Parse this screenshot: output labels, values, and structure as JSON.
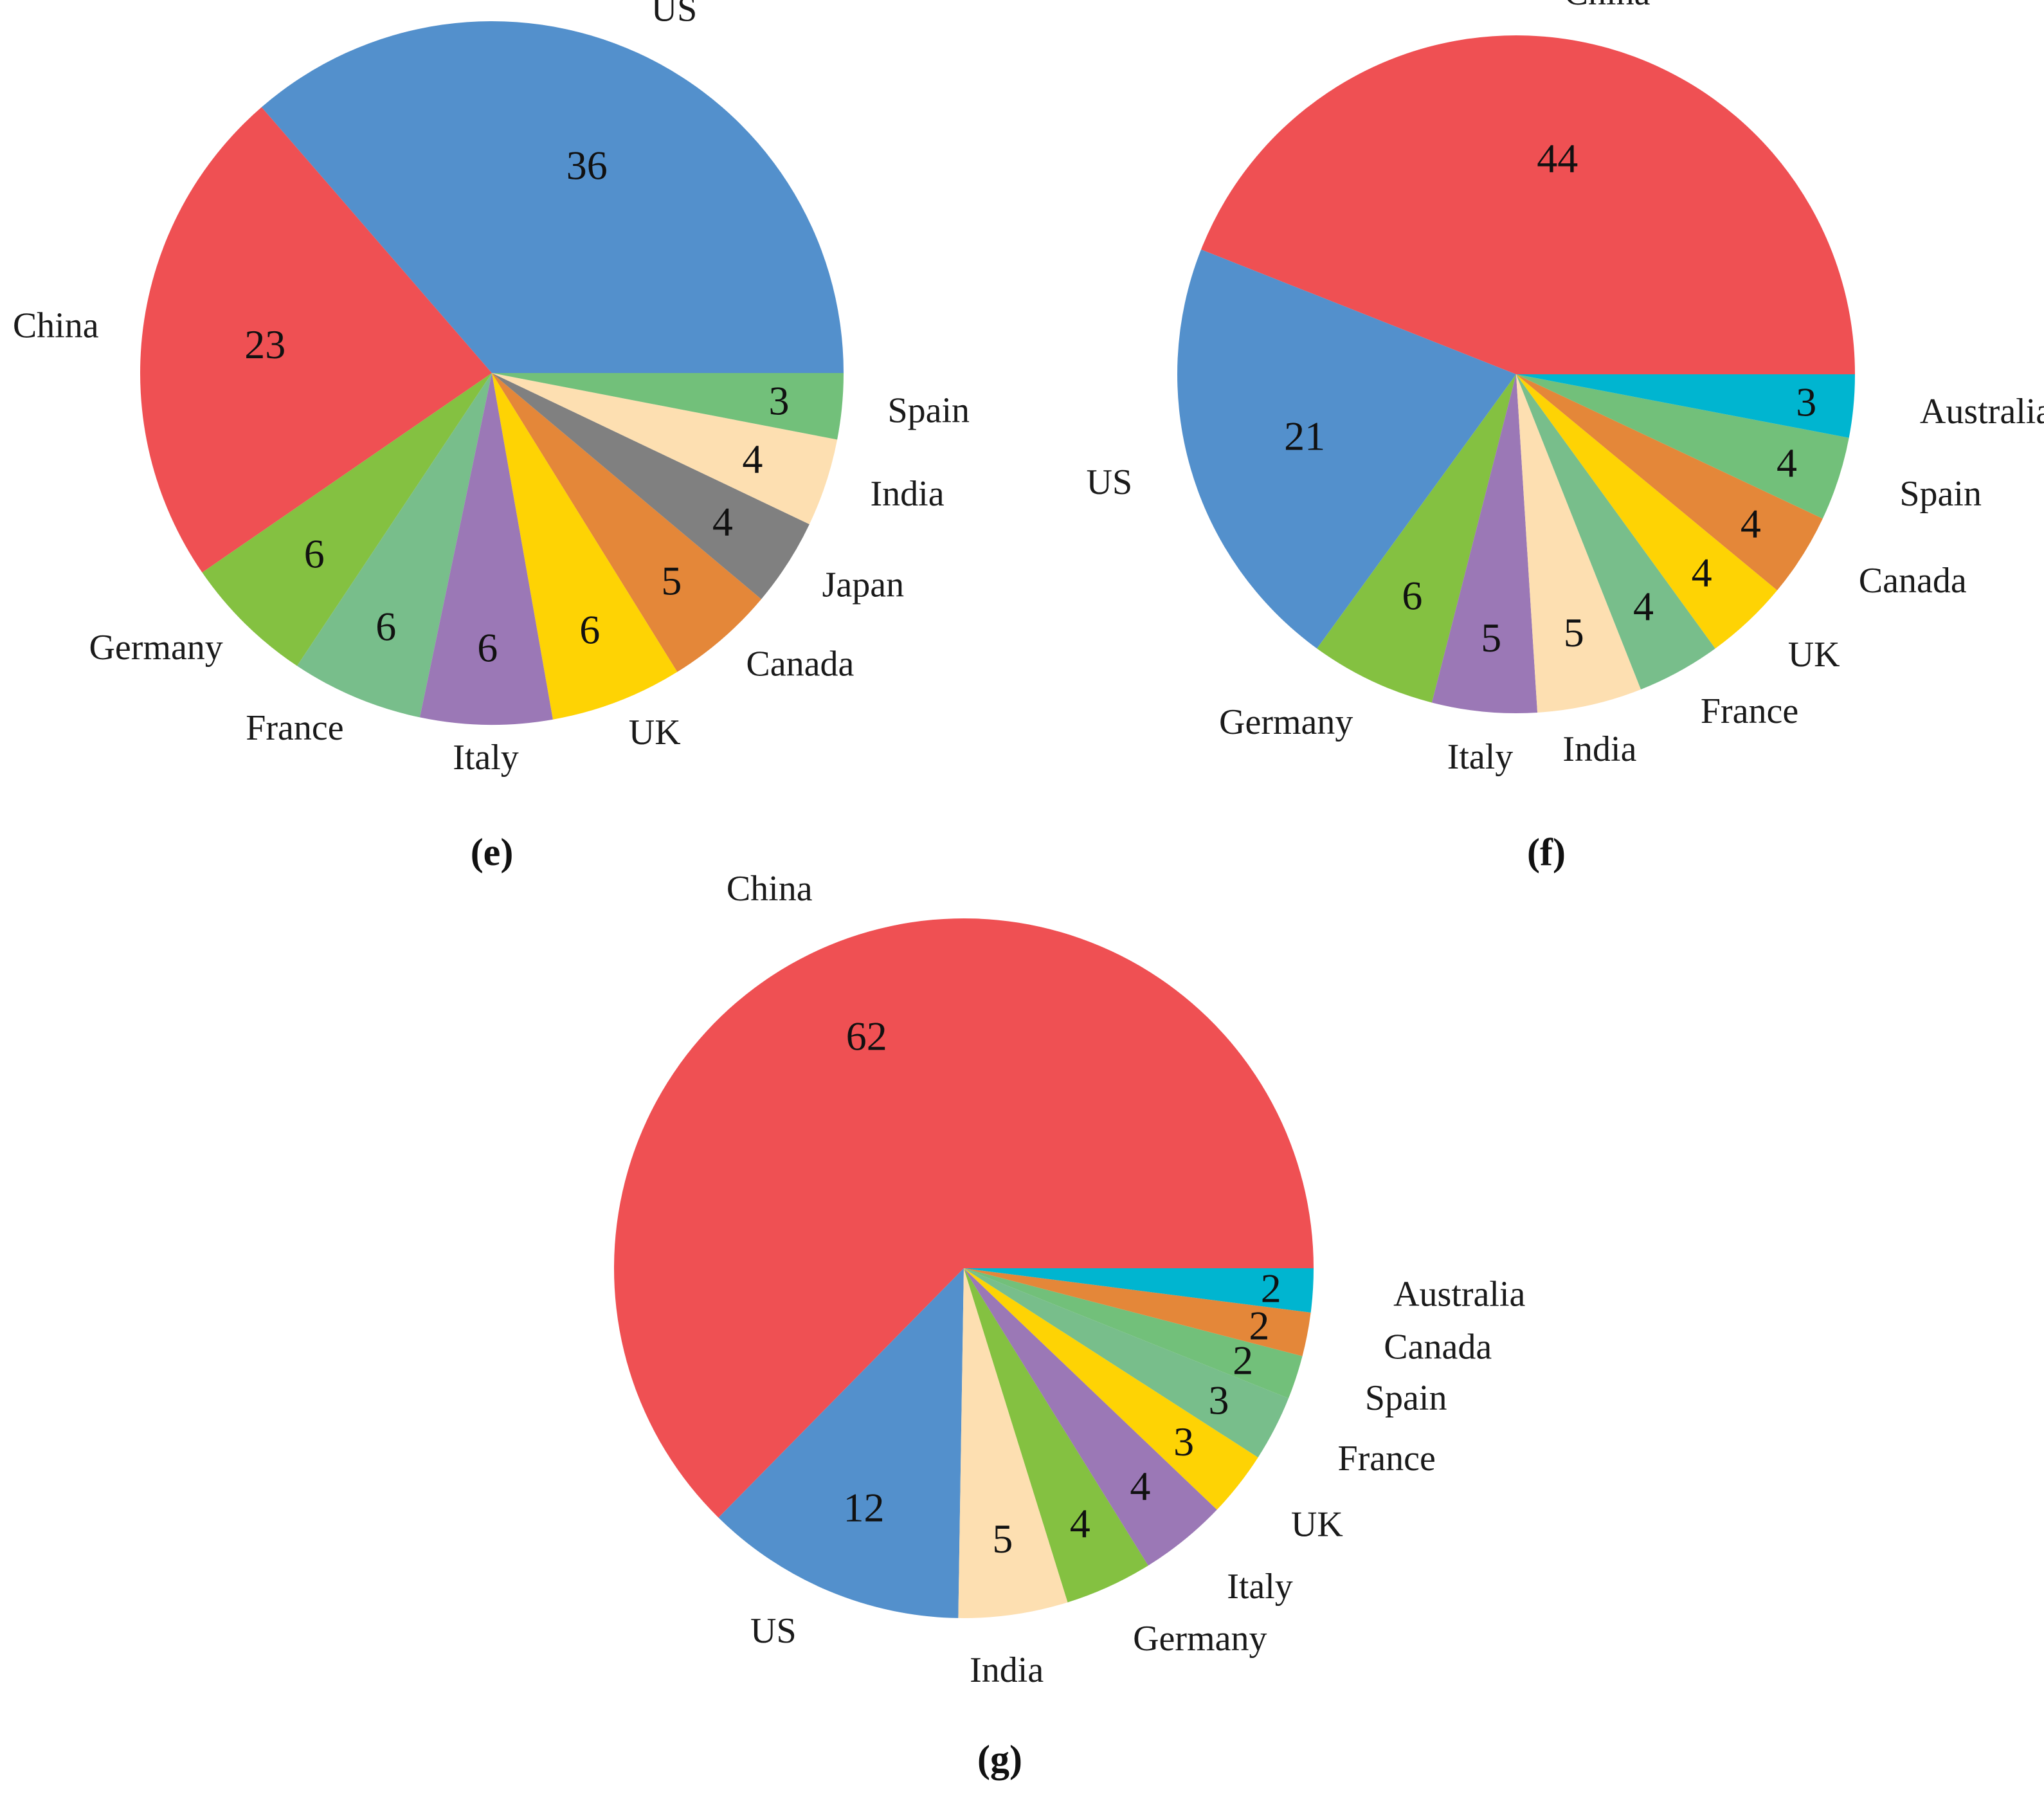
{
  "colors": {
    "US": "#5390CC",
    "China": "#EF5053",
    "Germany": "#84C141",
    "France": "#78BE8B",
    "Italy": "#9B78B6",
    "UK": "#FED304",
    "Canada": "#E48739",
    "Japan": "#808080",
    "India": "#FDDFB1",
    "Spain": "#72C07A",
    "Australia": "#00B5D0"
  },
  "chart_data": [
    {
      "type": "pie",
      "panel_label": "(e)",
      "slices": [
        {
          "label": "US",
          "value": 36
        },
        {
          "label": "China",
          "value": 23
        },
        {
          "label": "Germany",
          "value": 6
        },
        {
          "label": "France",
          "value": 6
        },
        {
          "label": "Italy",
          "value": 6
        },
        {
          "label": "UK",
          "value": 6
        },
        {
          "label": "Canada",
          "value": 5
        },
        {
          "label": "Japan",
          "value": 4
        },
        {
          "label": "India",
          "value": 4
        },
        {
          "label": "Spain",
          "value": 3
        }
      ]
    },
    {
      "type": "pie",
      "panel_label": "(f)",
      "slices": [
        {
          "label": "China",
          "value": 44
        },
        {
          "label": "US",
          "value": 21
        },
        {
          "label": "Germany",
          "value": 6
        },
        {
          "label": "Italy",
          "value": 5
        },
        {
          "label": "India",
          "value": 5
        },
        {
          "label": "France",
          "value": 4
        },
        {
          "label": "UK",
          "value": 4
        },
        {
          "label": "Canada",
          "value": 4
        },
        {
          "label": "Spain",
          "value": 4
        },
        {
          "label": "Australia",
          "value": 3
        }
      ]
    },
    {
      "type": "pie",
      "panel_label": "(g)",
      "slices": [
        {
          "label": "China",
          "value": 62
        },
        {
          "label": "US",
          "value": 12
        },
        {
          "label": "India",
          "value": 5
        },
        {
          "label": "Germany",
          "value": 4
        },
        {
          "label": "Italy",
          "value": 4
        },
        {
          "label": "UK",
          "value": 3
        },
        {
          "label": "France",
          "value": 3
        },
        {
          "label": "Spain",
          "value": 2
        },
        {
          "label": "Canada",
          "value": 2
        },
        {
          "label": "Australia",
          "value": 2
        }
      ]
    }
  ]
}
